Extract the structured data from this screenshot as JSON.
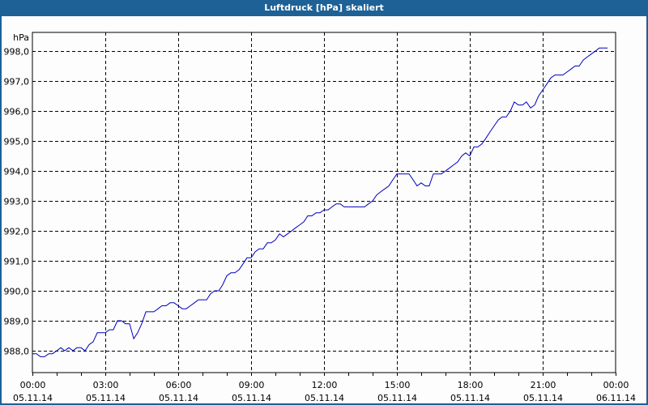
{
  "window": {
    "title": "Luftdruck [hPa] skaliert",
    "title_bar_color": "#1e6196"
  },
  "chart_data": {
    "type": "line",
    "title": "Luftdruck [hPa] skaliert",
    "xlabel": "",
    "ylabel": "hPa",
    "ylim": [
      987.6,
      998.6
    ],
    "yticks": [
      "988,0",
      "989,0",
      "990,0",
      "991,0",
      "992,0",
      "993,0",
      "994,0",
      "995,0",
      "996,0",
      "997,0",
      "998,0"
    ],
    "xticks": [
      {
        "time": "00:00",
        "date": "05.11.14"
      },
      {
        "time": "03:00",
        "date": "05.11.14"
      },
      {
        "time": "06:00",
        "date": "05.11.14"
      },
      {
        "time": "09:00",
        "date": "05.11.14"
      },
      {
        "time": "12:00",
        "date": "05.11.14"
      },
      {
        "time": "15:00",
        "date": "05.11.14"
      },
      {
        "time": "18:00",
        "date": "05.11.14"
      },
      {
        "time": "21:00",
        "date": "05.11.14"
      },
      {
        "time": "00:00",
        "date": "06.11.14"
      }
    ],
    "grid": true,
    "grid_style": "dashed",
    "line_color": "#0000c0",
    "series": [
      {
        "name": "Luftdruck",
        "x_hours": [
          0,
          0.17,
          0.33,
          0.5,
          0.67,
          0.83,
          1,
          1.17,
          1.33,
          1.5,
          1.67,
          1.83,
          2,
          2.17,
          2.33,
          2.5,
          2.67,
          2.83,
          3,
          3.17,
          3.33,
          3.5,
          3.67,
          3.83,
          4,
          4.17,
          4.33,
          4.5,
          4.67,
          4.83,
          5,
          5.17,
          5.33,
          5.5,
          5.67,
          5.83,
          6,
          6.17,
          6.33,
          6.5,
          6.67,
          6.83,
          7,
          7.17,
          7.33,
          7.5,
          7.67,
          7.83,
          8,
          8.17,
          8.33,
          8.5,
          8.67,
          8.83,
          9,
          9.17,
          9.33,
          9.5,
          9.67,
          9.83,
          10,
          10.17,
          10.33,
          10.5,
          10.67,
          10.83,
          11,
          11.17,
          11.33,
          11.5,
          11.67,
          11.83,
          12,
          12.17,
          12.33,
          12.5,
          12.67,
          12.83,
          13,
          13.17,
          13.33,
          13.5,
          13.67,
          13.83,
          14,
          14.17,
          14.33,
          14.5,
          14.67,
          14.83,
          15,
          15.17,
          15.33,
          15.5,
          15.67,
          15.83,
          16,
          16.17,
          16.33,
          16.5,
          16.67,
          16.83,
          17,
          17.17,
          17.33,
          17.5,
          17.67,
          17.83,
          18,
          18.17,
          18.33,
          18.5,
          18.67,
          18.83,
          19,
          19.17,
          19.33,
          19.5,
          19.67,
          19.83,
          20,
          20.17,
          20.33,
          20.5,
          20.67,
          20.83,
          21,
          21.17,
          21.33,
          21.5,
          21.67,
          21.83,
          22,
          22.17,
          22.33,
          22.5,
          22.67,
          22.83,
          23,
          23.17,
          23.33,
          23.5,
          23.67
        ],
        "values": [
          987.9,
          987.9,
          987.8,
          987.8,
          987.9,
          987.9,
          988.0,
          988.1,
          988.0,
          988.1,
          988.0,
          988.1,
          988.1,
          988.0,
          988.2,
          988.3,
          988.6,
          988.6,
          988.6,
          988.7,
          988.7,
          989.0,
          989.0,
          988.9,
          988.9,
          988.4,
          988.6,
          988.9,
          989.3,
          989.3,
          989.3,
          989.4,
          989.5,
          989.5,
          989.6,
          989.6,
          989.5,
          989.4,
          989.4,
          989.5,
          989.6,
          989.7,
          989.7,
          989.7,
          989.9,
          990.0,
          990.0,
          990.2,
          990.5,
          990.6,
          990.6,
          990.7,
          990.9,
          991.1,
          991.1,
          991.3,
          991.4,
          991.4,
          991.6,
          991.6,
          991.7,
          991.9,
          991.8,
          991.9,
          992.0,
          992.1,
          992.2,
          992.3,
          992.5,
          992.5,
          992.6,
          992.6,
          992.7,
          992.7,
          992.8,
          992.9,
          992.9,
          992.8,
          992.8,
          992.8,
          992.8,
          992.8,
          992.8,
          992.9,
          993.0,
          993.2,
          993.3,
          993.4,
          993.5,
          993.7,
          993.9,
          993.9,
          993.9,
          993.9,
          993.7,
          993.5,
          993.6,
          993.5,
          993.5,
          993.9,
          993.9,
          993.9,
          994.0,
          994.1,
          994.2,
          994.3,
          994.5,
          994.6,
          994.5,
          994.8,
          994.8,
          994.9,
          995.1,
          995.3,
          995.5,
          995.7,
          995.8,
          995.8,
          996.0,
          996.3,
          996.2,
          996.2,
          996.3,
          996.1,
          996.2,
          996.5,
          996.7,
          996.9,
          997.1,
          997.2,
          997.2,
          997.2,
          997.3,
          997.4,
          997.5,
          997.5,
          997.7,
          997.8,
          997.9,
          998.0,
          998.1,
          998.1,
          998.1,
          998.1
        ]
      }
    ]
  }
}
